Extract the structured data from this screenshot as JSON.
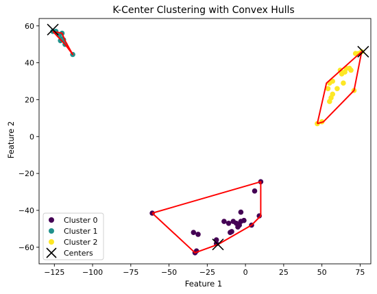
{
  "chart_data": {
    "type": "scatter",
    "title": "K-Center Clustering with Convex Hulls",
    "xlabel": "Feature 1",
    "ylabel": "Feature 2",
    "xlim": [
      -135,
      82
    ],
    "ylim": [
      -69,
      64
    ],
    "xticks": [
      -125,
      -100,
      -75,
      -50,
      -25,
      0,
      25,
      50,
      75
    ],
    "yticks": [
      -60,
      -40,
      -20,
      0,
      20,
      40,
      60
    ],
    "grid": false,
    "legend_position": "lower-left",
    "hull_color": "#ff0000",
    "series": [
      {
        "name": "Cluster 0",
        "color": "#440154",
        "points": [
          [
            -61,
            -41.5
          ],
          [
            -34,
            -52
          ],
          [
            -33,
            -63
          ],
          [
            -32,
            -62
          ],
          [
            -31,
            -53
          ],
          [
            -19,
            -56
          ],
          [
            -19,
            -58
          ],
          [
            -14,
            -46
          ],
          [
            -11,
            -47
          ],
          [
            -10,
            -52
          ],
          [
            -9,
            -51.5
          ],
          [
            -8,
            -46
          ],
          [
            -6,
            -47
          ],
          [
            -5,
            -49
          ],
          [
            -4,
            -48
          ],
          [
            -3,
            -46
          ],
          [
            -3,
            -41
          ],
          [
            -1,
            -45.5
          ],
          [
            4,
            -48
          ],
          [
            6,
            -29.5
          ],
          [
            9,
            -43
          ],
          [
            10,
            -24.5
          ]
        ],
        "hull": [
          [
            -61,
            -41.5
          ],
          [
            10,
            -24.5
          ],
          [
            10,
            -43
          ],
          [
            4,
            -48
          ],
          [
            -18,
            -58.5
          ],
          [
            -33,
            -63
          ],
          [
            -61,
            -41.5
          ]
        ]
      },
      {
        "name": "Cluster 1",
        "color": "#21918c",
        "points": [
          [
            -126,
            57
          ],
          [
            -124,
            57
          ],
          [
            -122,
            55
          ],
          [
            -120,
            56
          ],
          [
            -121,
            52
          ],
          [
            -120,
            53
          ],
          [
            -119,
            52.5
          ],
          [
            -118,
            50
          ],
          [
            -113,
            44.5
          ]
        ],
        "hull": [
          [
            -126,
            57
          ],
          [
            -120,
            56
          ],
          [
            -118,
            52
          ],
          [
            -113,
            44.5
          ],
          [
            -118,
            50
          ],
          [
            -126,
            57
          ]
        ]
      },
      {
        "name": "Cluster 2",
        "color": "#fde725",
        "points": [
          [
            47,
            7
          ],
          [
            50,
            8
          ],
          [
            54,
            26
          ],
          [
            55,
            19
          ],
          [
            55,
            29
          ],
          [
            56,
            21
          ],
          [
            57,
            23
          ],
          [
            57,
            30
          ],
          [
            60,
            26
          ],
          [
            62,
            36
          ],
          [
            63,
            34
          ],
          [
            64,
            29
          ],
          [
            65,
            35
          ],
          [
            66,
            37
          ],
          [
            68,
            37
          ],
          [
            69,
            36
          ],
          [
            71,
            25
          ],
          [
            72,
            45
          ],
          [
            74,
            45
          ],
          [
            76,
            46
          ]
        ],
        "hull": [
          [
            47,
            7
          ],
          [
            53,
            29
          ],
          [
            76,
            46
          ],
          [
            71,
            25
          ],
          [
            51,
            8
          ],
          [
            47,
            7
          ]
        ]
      }
    ],
    "centers": {
      "name": "Centers",
      "color": "#000000",
      "points": [
        [
          -126,
          58
        ],
        [
          -18,
          -58.5
        ],
        [
          77,
          46
        ]
      ]
    }
  }
}
